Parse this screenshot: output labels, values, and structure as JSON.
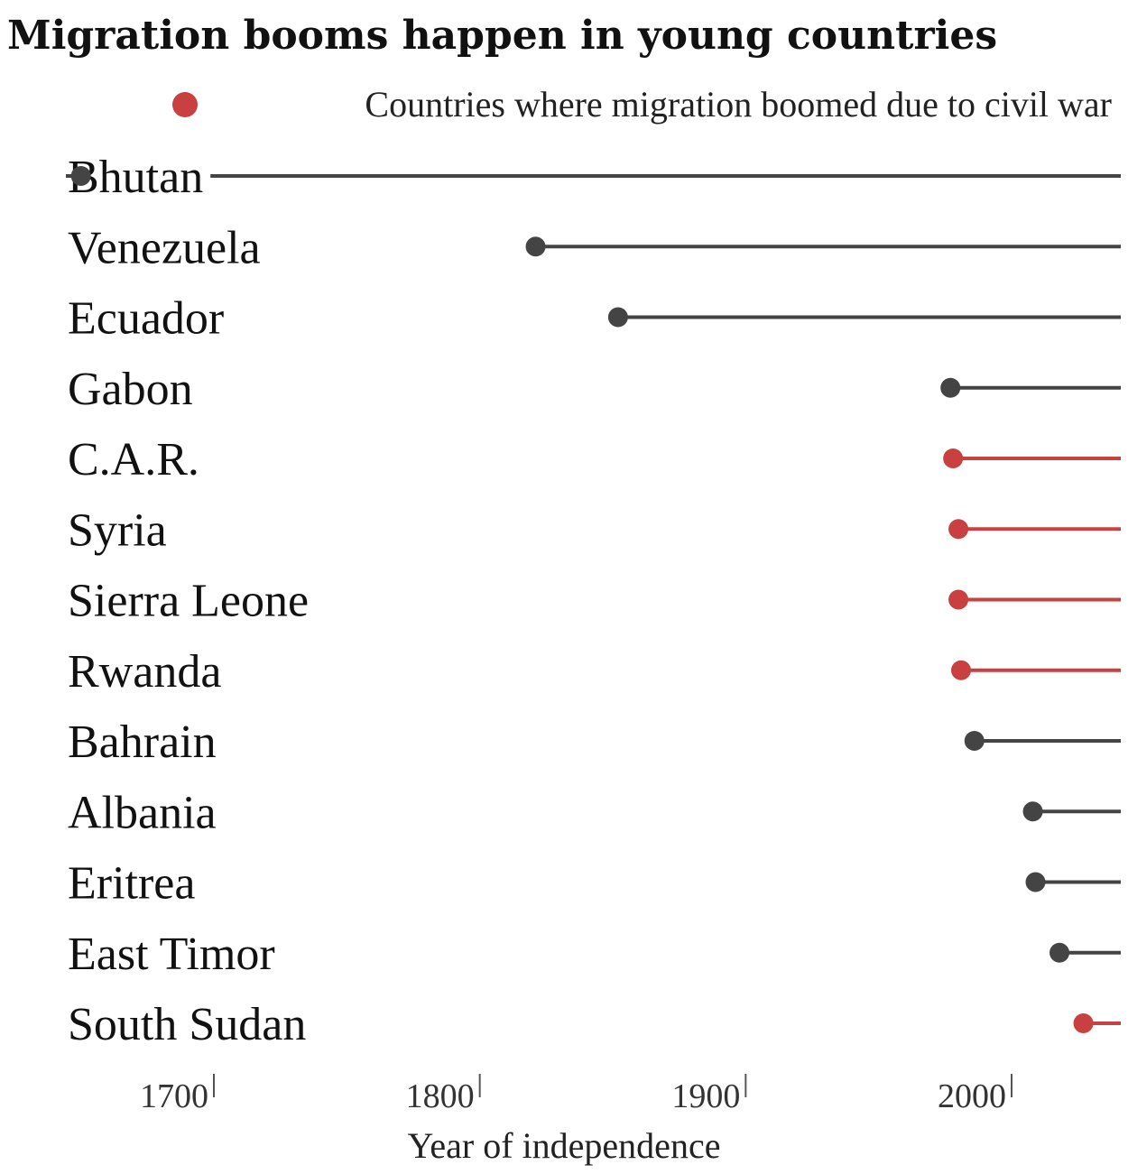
{
  "chart_data": {
    "type": "lollipop",
    "title": "Migration booms happen in young countries",
    "xlabel": "Year of independence",
    "xlim": [
      1643,
      2052
    ],
    "xticks": [
      1700,
      1800,
      1900,
      2000
    ],
    "legend": {
      "label": "Countries where migration boomed due to civil war",
      "color": "#c94040",
      "position": "top-right"
    },
    "colors": {
      "default": "#444444",
      "highlight": "#c94040"
    },
    "categories": [
      "Bhutan",
      "Venezuela",
      "Ecuador",
      "Gabon",
      "C.A.R.",
      "Syria",
      "Sierra Leone",
      "Rwanda",
      "Bahrain",
      "Albania",
      "Eritrea",
      "East Timor",
      "South Sudan"
    ],
    "values": [
      1650,
      1821,
      1852,
      1977,
      1978,
      1980,
      1980,
      1981,
      1986,
      2008,
      2009,
      2018,
      2027
    ],
    "highlight": [
      false,
      false,
      false,
      false,
      true,
      true,
      true,
      true,
      false,
      false,
      false,
      false,
      true
    ]
  }
}
